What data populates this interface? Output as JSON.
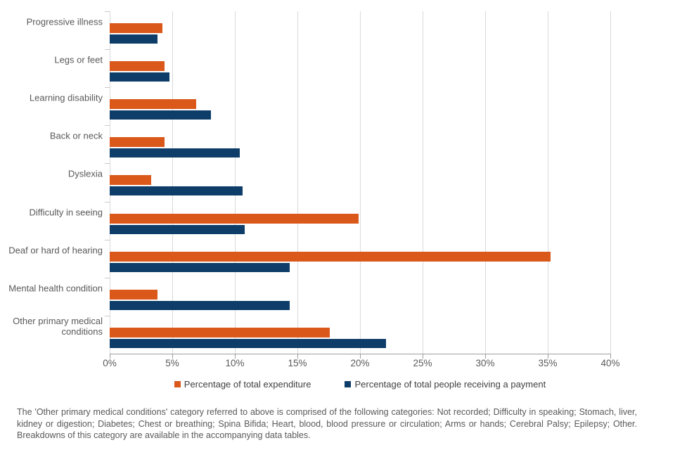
{
  "chart_data": {
    "type": "bar",
    "orientation": "horizontal",
    "categories": [
      "Progressive illness",
      "Legs or feet",
      "Learning disability",
      "Back or neck",
      "Dyslexia",
      "Difficulty in seeing",
      "Deaf or hard of hearing",
      "Mental health condition",
      "Other primary medical conditions"
    ],
    "series": [
      {
        "name": "Percentage of total expenditure",
        "color": "#D9581A",
        "values": [
          4.2,
          4.4,
          6.9,
          4.4,
          3.3,
          19.9,
          35.2,
          3.8,
          17.6
        ]
      },
      {
        "name": "Percentage of total people receiving a payment",
        "color": "#0D3D68",
        "values": [
          3.8,
          4.8,
          8.1,
          10.4,
          10.6,
          10.8,
          14.4,
          14.4,
          22.1
        ]
      }
    ],
    "title": "",
    "xlabel": "",
    "ylabel": "",
    "xlim": [
      0,
      40
    ],
    "x_tick_step": 5,
    "x_tick_suffix": "%",
    "grid": true,
    "legend_position": "bottom"
  },
  "footnote": "The 'Other primary medical conditions' category referred to above is comprised of the following categories: Not recorded; Difficulty in speaking; Stomach, liver, kidney or digestion; Diabetes; Chest or breathing; Spina Bifida; Heart, blood, blood pressure or circulation; Arms or hands; Cerebral Palsy; Epilepsy; Other. Breakdowns of this category are available in the accompanying data tables."
}
